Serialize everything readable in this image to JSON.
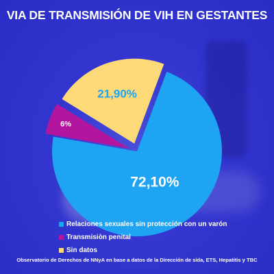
{
  "colors": {
    "background": "#2d2fd0",
    "blue": "#1ea4f2",
    "magenta": "#b3169e",
    "yellow": "#fed978"
  },
  "footer": {
    "source": "Observatorio de Derechos de NNyA en base a datos de la Dirección de sida, ETS, Hepatitis y TBC"
  },
  "chart_data": {
    "type": "pie",
    "title": "VIA DE TRANSMISIÓN DE VIH EN GESTANTES",
    "legend_position": "bottom-left",
    "slices": [
      {
        "label": "Relaciones sexuales sin protección con un varón",
        "value": 72.1,
        "display": "72,10%",
        "color": "#1ea4f2"
      },
      {
        "label": "Transmisiòn penital",
        "value": 6,
        "display": "6%",
        "color": "#b3169e"
      },
      {
        "label": "Sin datos",
        "value": 21.9,
        "display": "21,90%",
        "color": "#fed978"
      }
    ]
  }
}
